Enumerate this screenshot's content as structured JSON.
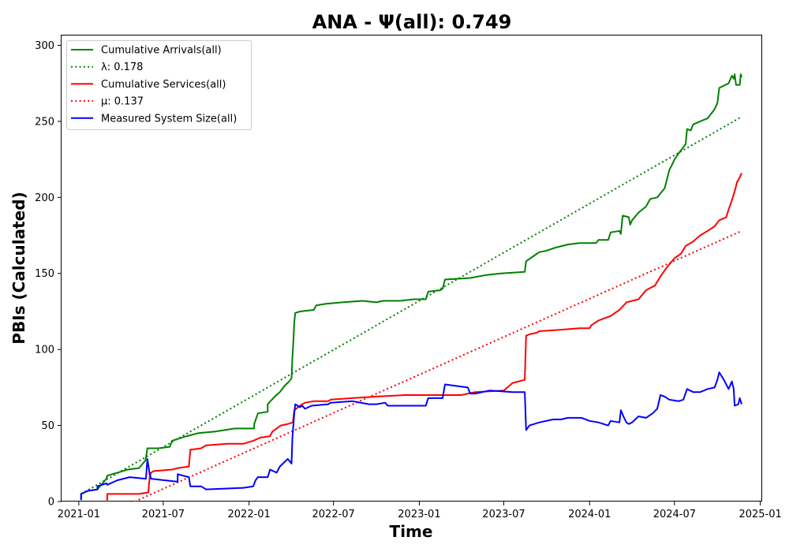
{
  "chart_data": {
    "type": "line",
    "title": "ANA -  Ψ(all): 0.749",
    "xlabel": "Time",
    "ylabel": "PBIs (Calculated)",
    "xlim": [
      "2020-11-25",
      "2025-01-05"
    ],
    "ylim": [
      0,
      307
    ],
    "x_ticks": [
      "2021-01",
      "2021-07",
      "2022-01",
      "2022-07",
      "2023-01",
      "2023-07",
      "2024-01",
      "2024-07",
      "2025-01"
    ],
    "y_ticks": [
      0,
      50,
      100,
      150,
      200,
      250,
      300
    ],
    "grid": false,
    "legend_position": "top-left",
    "series": [
      {
        "name": "Cumulative Arrivals(all)",
        "color": "#008000",
        "style": "solid",
        "points": [
          [
            "2021-01-06",
            1
          ],
          [
            "2021-01-06",
            5
          ],
          [
            "2021-01-20",
            7
          ],
          [
            "2021-02-10",
            8
          ],
          [
            "2021-03-01",
            15
          ],
          [
            "2021-03-03",
            17
          ],
          [
            "2021-03-25",
            19
          ],
          [
            "2021-04-15",
            21
          ],
          [
            "2021-05-10",
            22
          ],
          [
            "2021-05-24",
            27
          ],
          [
            "2021-05-28",
            35
          ],
          [
            "2021-06-20",
            35
          ],
          [
            "2021-07-15",
            36
          ],
          [
            "2021-07-20",
            40
          ],
          [
            "2021-08-20",
            43
          ],
          [
            "2021-09-15",
            45
          ],
          [
            "2021-10-20",
            46
          ],
          [
            "2021-11-10",
            47
          ],
          [
            "2021-12-01",
            48
          ],
          [
            "2022-01-12",
            48
          ],
          [
            "2022-01-12",
            51
          ],
          [
            "2022-01-20",
            58
          ],
          [
            "2022-02-10",
            59
          ],
          [
            "2022-02-10",
            64
          ],
          [
            "2022-02-25",
            69
          ],
          [
            "2022-03-08",
            72
          ],
          [
            "2022-03-18",
            76
          ],
          [
            "2022-03-28",
            79
          ],
          [
            "2022-04-02",
            81
          ],
          [
            "2022-04-04",
            95
          ],
          [
            "2022-04-06",
            105
          ],
          [
            "2022-04-08",
            118
          ],
          [
            "2022-04-10",
            124
          ],
          [
            "2022-04-20",
            125
          ],
          [
            "2022-05-20",
            126
          ],
          [
            "2022-05-25",
            129
          ],
          [
            "2022-06-15",
            130
          ],
          [
            "2022-07-20",
            131
          ],
          [
            "2022-09-01",
            132
          ],
          [
            "2022-10-01",
            131
          ],
          [
            "2022-10-15",
            132
          ],
          [
            "2022-11-20",
            132
          ],
          [
            "2022-12-20",
            133
          ],
          [
            "2023-01-15",
            133
          ],
          [
            "2023-01-20",
            138
          ],
          [
            "2023-02-15",
            139
          ],
          [
            "2023-02-20",
            140
          ],
          [
            "2023-02-25",
            146
          ],
          [
            "2023-04-20",
            147
          ],
          [
            "2023-05-25",
            149
          ],
          [
            "2023-06-25",
            150
          ],
          [
            "2023-08-15",
            151
          ],
          [
            "2023-08-18",
            158
          ],
          [
            "2023-09-01",
            161
          ],
          [
            "2023-09-15",
            164
          ],
          [
            "2023-10-01",
            165
          ],
          [
            "2023-10-20",
            167
          ],
          [
            "2023-11-15",
            169
          ],
          [
            "2023-12-10",
            170
          ],
          [
            "2024-01-15",
            170
          ],
          [
            "2024-01-20",
            172
          ],
          [
            "2024-02-10",
            172
          ],
          [
            "2024-02-15",
            177
          ],
          [
            "2024-03-05",
            178
          ],
          [
            "2024-03-08",
            176
          ],
          [
            "2024-03-12",
            188
          ],
          [
            "2024-03-25",
            187
          ],
          [
            "2024-03-28",
            182
          ],
          [
            "2024-04-01",
            185
          ],
          [
            "2024-04-15",
            190
          ],
          [
            "2024-05-01",
            194
          ],
          [
            "2024-05-10",
            199
          ],
          [
            "2024-05-25",
            200
          ],
          [
            "2024-06-10",
            206
          ],
          [
            "2024-06-15",
            212
          ],
          [
            "2024-06-20",
            218
          ],
          [
            "2024-06-25",
            221
          ],
          [
            "2024-07-01",
            225
          ],
          [
            "2024-07-10",
            229
          ],
          [
            "2024-07-20",
            233
          ],
          [
            "2024-07-25",
            235
          ],
          [
            "2024-07-28",
            245
          ],
          [
            "2024-08-05",
            244
          ],
          [
            "2024-08-10",
            248
          ],
          [
            "2024-08-25",
            250
          ],
          [
            "2024-09-10",
            252
          ],
          [
            "2024-09-25",
            258
          ],
          [
            "2024-10-01",
            262
          ],
          [
            "2024-10-05",
            272
          ],
          [
            "2024-10-25",
            275
          ],
          [
            "2024-11-01",
            280
          ],
          [
            "2024-11-05",
            278
          ],
          [
            "2024-11-07",
            281
          ],
          [
            "2024-11-10",
            274
          ],
          [
            "2024-11-18",
            274
          ],
          [
            "2024-11-20",
            281
          ],
          [
            "2024-11-22",
            279
          ]
        ]
      },
      {
        "name": "λ: 0.178",
        "color": "#008000",
        "style": "dotted",
        "points": [
          [
            "2021-01-06",
            5
          ],
          [
            "2024-11-22",
            253
          ]
        ]
      },
      {
        "name": "Cumulative Services(all)",
        "color": "#ff0000",
        "style": "solid",
        "points": [
          [
            "2021-03-03",
            0
          ],
          [
            "2021-03-03",
            5
          ],
          [
            "2021-04-20",
            5
          ],
          [
            "2021-05-10",
            5
          ],
          [
            "2021-05-30",
            6
          ],
          [
            "2021-06-02",
            16
          ],
          [
            "2021-06-05",
            19
          ],
          [
            "2021-06-10",
            20
          ],
          [
            "2021-07-20",
            21
          ],
          [
            "2021-08-01",
            22
          ],
          [
            "2021-08-25",
            23
          ],
          [
            "2021-08-28",
            34
          ],
          [
            "2021-09-20",
            35
          ],
          [
            "2021-10-01",
            37
          ],
          [
            "2021-11-15",
            38
          ],
          [
            "2021-12-20",
            38
          ],
          [
            "2022-01-10",
            40
          ],
          [
            "2022-01-25",
            42
          ],
          [
            "2022-02-15",
            43
          ],
          [
            "2022-02-20",
            46
          ],
          [
            "2022-03-10",
            50
          ],
          [
            "2022-03-25",
            51
          ],
          [
            "2022-04-05",
            52
          ],
          [
            "2022-04-08",
            60
          ],
          [
            "2022-04-20",
            63
          ],
          [
            "2022-04-25",
            64
          ],
          [
            "2022-05-01",
            65
          ],
          [
            "2022-05-20",
            66
          ],
          [
            "2022-06-20",
            66
          ],
          [
            "2022-06-25",
            67
          ],
          [
            "2022-08-10",
            68
          ],
          [
            "2022-10-01",
            69
          ],
          [
            "2022-12-01",
            70
          ],
          [
            "2023-02-01",
            70
          ],
          [
            "2023-04-01",
            70
          ],
          [
            "2023-04-15",
            71
          ],
          [
            "2023-05-01",
            72
          ],
          [
            "2023-07-01",
            73
          ],
          [
            "2023-07-20",
            78
          ],
          [
            "2023-08-15",
            80
          ],
          [
            "2023-08-18",
            109
          ],
          [
            "2023-08-25",
            110
          ],
          [
            "2023-09-10",
            111
          ],
          [
            "2023-09-15",
            112
          ],
          [
            "2023-11-01",
            113
          ],
          [
            "2023-12-10",
            114
          ],
          [
            "2024-01-01",
            114
          ],
          [
            "2024-01-05",
            116
          ],
          [
            "2024-01-20",
            119
          ],
          [
            "2024-02-15",
            122
          ],
          [
            "2024-03-05",
            126
          ],
          [
            "2024-03-20",
            131
          ],
          [
            "2024-04-15",
            133
          ],
          [
            "2024-05-01",
            139
          ],
          [
            "2024-05-20",
            142
          ],
          [
            "2024-06-01",
            148
          ],
          [
            "2024-06-10",
            152
          ],
          [
            "2024-06-20",
            156
          ],
          [
            "2024-07-01",
            160
          ],
          [
            "2024-07-15",
            163
          ],
          [
            "2024-07-25",
            168
          ],
          [
            "2024-08-10",
            171
          ],
          [
            "2024-08-25",
            175
          ],
          [
            "2024-09-10",
            178
          ],
          [
            "2024-09-25",
            181
          ],
          [
            "2024-10-05",
            185
          ],
          [
            "2024-10-20",
            187
          ],
          [
            "2024-10-25",
            192
          ],
          [
            "2024-11-01",
            198
          ],
          [
            "2024-11-08",
            205
          ],
          [
            "2024-11-12",
            210
          ],
          [
            "2024-11-16",
            212
          ],
          [
            "2024-11-22",
            216
          ]
        ]
      },
      {
        "name": "μ: 0.137",
        "color": "#ff0000",
        "style": "dotted",
        "points": [
          [
            "2021-05-01",
            0
          ],
          [
            "2024-11-22",
            178
          ]
        ]
      },
      {
        "name": "Measured System Size(all)",
        "color": "#0000ff",
        "style": "solid",
        "points": [
          [
            "2021-01-06",
            1
          ],
          [
            "2021-01-06",
            5
          ],
          [
            "2021-01-20",
            7
          ],
          [
            "2021-02-10",
            8
          ],
          [
            "2021-02-10",
            10
          ],
          [
            "2021-03-01",
            12
          ],
          [
            "2021-03-03",
            11
          ],
          [
            "2021-03-25",
            14
          ],
          [
            "2021-04-20",
            16
          ],
          [
            "2021-05-25",
            15
          ],
          [
            "2021-05-28",
            28
          ],
          [
            "2021-06-02",
            18
          ],
          [
            "2021-06-05",
            15
          ],
          [
            "2021-08-01",
            13
          ],
          [
            "2021-08-01",
            18
          ],
          [
            "2021-08-25",
            16
          ],
          [
            "2021-08-28",
            10
          ],
          [
            "2021-09-20",
            10
          ],
          [
            "2021-10-01",
            8
          ],
          [
            "2021-12-20",
            9
          ],
          [
            "2022-01-10",
            10
          ],
          [
            "2022-01-15",
            14
          ],
          [
            "2022-01-20",
            16
          ],
          [
            "2022-02-10",
            16
          ],
          [
            "2022-02-15",
            21
          ],
          [
            "2022-03-01",
            19
          ],
          [
            "2022-03-08",
            23
          ],
          [
            "2022-03-25",
            28
          ],
          [
            "2022-04-02",
            25
          ],
          [
            "2022-04-04",
            42
          ],
          [
            "2022-04-08",
            58
          ],
          [
            "2022-04-10",
            64
          ],
          [
            "2022-04-20",
            62
          ],
          [
            "2022-04-25",
            63
          ],
          [
            "2022-05-01",
            61
          ],
          [
            "2022-05-15",
            63
          ],
          [
            "2022-06-20",
            64
          ],
          [
            "2022-06-25",
            65
          ],
          [
            "2022-08-10",
            66
          ],
          [
            "2022-09-15",
            64
          ],
          [
            "2022-10-01",
            64
          ],
          [
            "2022-10-20",
            65
          ],
          [
            "2022-10-25",
            63
          ],
          [
            "2023-01-15",
            63
          ],
          [
            "2023-01-20",
            68
          ],
          [
            "2023-02-20",
            68
          ],
          [
            "2023-02-25",
            77
          ],
          [
            "2023-04-15",
            75
          ],
          [
            "2023-04-20",
            71
          ],
          [
            "2023-05-01",
            71
          ],
          [
            "2023-06-01",
            73
          ],
          [
            "2023-07-20",
            72
          ],
          [
            "2023-08-15",
            72
          ],
          [
            "2023-08-18",
            47
          ],
          [
            "2023-08-25",
            50
          ],
          [
            "2023-09-15",
            52
          ],
          [
            "2023-10-15",
            54
          ],
          [
            "2023-11-01",
            54
          ],
          [
            "2023-11-15",
            55
          ],
          [
            "2023-12-15",
            55
          ],
          [
            "2024-01-01",
            53
          ],
          [
            "2024-01-20",
            52
          ],
          [
            "2024-02-10",
            50
          ],
          [
            "2024-02-15",
            53
          ],
          [
            "2024-03-05",
            52
          ],
          [
            "2024-03-08",
            60
          ],
          [
            "2024-03-15",
            55
          ],
          [
            "2024-03-20",
            52
          ],
          [
            "2024-03-25",
            51
          ],
          [
            "2024-04-01",
            52
          ],
          [
            "2024-04-15",
            56
          ],
          [
            "2024-05-01",
            55
          ],
          [
            "2024-05-15",
            58
          ],
          [
            "2024-05-25",
            61
          ],
          [
            "2024-06-01",
            70
          ],
          [
            "2024-06-10",
            69
          ],
          [
            "2024-06-20",
            67
          ],
          [
            "2024-07-10",
            66
          ],
          [
            "2024-07-20",
            67
          ],
          [
            "2024-07-28",
            74
          ],
          [
            "2024-08-10",
            72
          ],
          [
            "2024-08-25",
            72
          ],
          [
            "2024-09-10",
            74
          ],
          [
            "2024-09-25",
            75
          ],
          [
            "2024-10-01",
            80
          ],
          [
            "2024-10-05",
            85
          ],
          [
            "2024-10-15",
            80
          ],
          [
            "2024-10-25",
            74
          ],
          [
            "2024-11-01",
            79
          ],
          [
            "2024-11-05",
            74
          ],
          [
            "2024-11-07",
            63
          ],
          [
            "2024-11-15",
            64
          ],
          [
            "2024-11-18",
            68
          ],
          [
            "2024-11-22",
            64
          ]
        ]
      }
    ]
  }
}
